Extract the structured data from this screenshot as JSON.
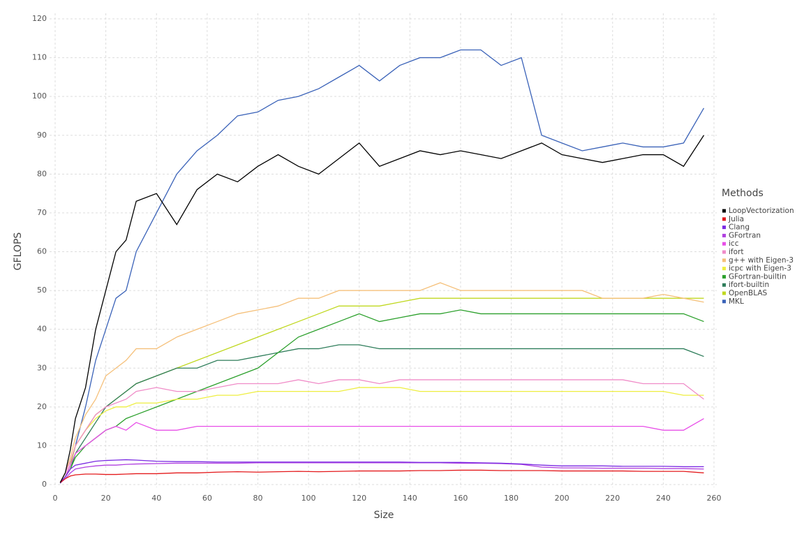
{
  "chart_data": {
    "type": "line",
    "x_label": "Size",
    "y_label": "GFLOPS",
    "legend_title": "Methods",
    "legend_position": "right",
    "grid": true,
    "xlim": [
      0,
      260
    ],
    "xticks": [
      0,
      20,
      40,
      60,
      80,
      100,
      120,
      140,
      160,
      180,
      200,
      220,
      240,
      260
    ],
    "ylim": [
      0,
      120
    ],
    "yticks": [
      0,
      10,
      20,
      30,
      40,
      50,
      60,
      70,
      80,
      90,
      100,
      110,
      120
    ],
    "x": [
      2,
      4,
      6,
      8,
      12,
      16,
      20,
      24,
      28,
      32,
      40,
      48,
      56,
      64,
      72,
      80,
      88,
      96,
      104,
      112,
      120,
      128,
      136,
      144,
      152,
      160,
      168,
      176,
      184,
      192,
      200,
      208,
      216,
      224,
      232,
      240,
      248,
      256
    ],
    "series": [
      {
        "name": "LoopVectorization",
        "color": "#000000",
        "values": [
          0.5,
          3,
          9,
          17,
          25,
          40,
          50,
          60,
          63,
          73,
          75,
          67,
          76,
          80,
          78,
          82,
          85,
          82,
          80,
          84,
          88,
          82,
          84,
          86,
          85,
          86,
          85,
          84,
          86,
          88,
          85,
          84,
          83,
          84,
          85,
          85,
          82,
          90
        ]
      },
      {
        "name": "Julia",
        "color": "#e41a1c",
        "values": [
          0.5,
          1.5,
          2.2,
          2.5,
          2.7,
          2.7,
          2.6,
          2.6,
          2.7,
          2.8,
          2.8,
          3,
          3,
          3.2,
          3.3,
          3.2,
          3.3,
          3.4,
          3.3,
          3.4,
          3.5,
          3.5,
          3.5,
          3.6,
          3.6,
          3.7,
          3.7,
          3.6,
          3.6,
          3.6,
          3.5,
          3.5,
          3.5,
          3.5,
          3.4,
          3.4,
          3.4,
          3
        ]
      },
      {
        "name": "Clang",
        "color": "#7b2be2",
        "values": [
          0.5,
          2,
          4,
          5,
          5.5,
          6,
          6.2,
          6.3,
          6.4,
          6.3,
          6,
          5.9,
          5.9,
          5.8,
          5.8,
          5.8,
          5.8,
          5.8,
          5.8,
          5.8,
          5.8,
          5.8,
          5.8,
          5.7,
          5.7,
          5.7,
          5.6,
          5.5,
          5.3,
          5,
          4.8,
          4.8,
          4.8,
          4.7,
          4.7,
          4.7,
          4.6,
          4.6
        ]
      },
      {
        "name": "GFortran",
        "color": "#b040e0",
        "values": [
          0.4,
          1.5,
          3,
          4,
          4.5,
          4.8,
          5,
          5,
          5.2,
          5.3,
          5.4,
          5.5,
          5.5,
          5.5,
          5.5,
          5.6,
          5.6,
          5.6,
          5.6,
          5.6,
          5.6,
          5.6,
          5.6,
          5.6,
          5.6,
          5.5,
          5.5,
          5.4,
          5.2,
          4.5,
          4.3,
          4.3,
          4.2,
          4.2,
          4.2,
          4.1,
          4.1,
          4
        ]
      },
      {
        "name": "icc",
        "color": "#e84ee8",
        "values": [
          0.5,
          2,
          5,
          8,
          10,
          12,
          14,
          15,
          14,
          16,
          14,
          14,
          15,
          15,
          15,
          15,
          15,
          15,
          15,
          15,
          15,
          15,
          15,
          15,
          15,
          15,
          15,
          15,
          15,
          15,
          15,
          15,
          15,
          15,
          15,
          14,
          14,
          17
        ]
      },
      {
        "name": "ifort",
        "color": "#f08cc8",
        "values": [
          0.5,
          3,
          6,
          10,
          14,
          18,
          20,
          21,
          22,
          24,
          25,
          24,
          24,
          25,
          26,
          26,
          26,
          27,
          26,
          27,
          27,
          26,
          27,
          27,
          27,
          27,
          27,
          27,
          27,
          27,
          27,
          27,
          27,
          27,
          26,
          26,
          26,
          22
        ]
      },
      {
        "name": "g++ with Eigen-3",
        "color": "#f5c07a",
        "values": [
          0.5,
          3,
          7,
          12,
          18,
          22,
          28,
          30,
          32,
          35,
          35,
          38,
          40,
          42,
          44,
          45,
          46,
          48,
          48,
          50,
          50,
          50,
          50,
          50,
          52,
          50,
          50,
          50,
          50,
          50,
          50,
          50,
          48,
          48,
          48,
          49,
          48,
          47
        ]
      },
      {
        "name": "icpc with Eigen-3",
        "color": "#eeee40",
        "values": [
          0.5,
          3,
          6,
          10,
          14,
          17,
          19,
          20,
          20,
          21,
          21,
          22,
          22,
          23,
          23,
          24,
          24,
          24,
          24,
          24,
          25,
          25,
          25,
          24,
          24,
          24,
          24,
          24,
          24,
          24,
          24,
          24,
          24,
          24,
          24,
          24,
          23,
          23
        ]
      },
      {
        "name": "GFortran-builtin",
        "color": "#2ca02c",
        "values": [
          0.5,
          2,
          4,
          7,
          10,
          12,
          14,
          15,
          17,
          18,
          20,
          22,
          24,
          26,
          28,
          30,
          34,
          38,
          40,
          42,
          44,
          42,
          43,
          44,
          44,
          45,
          44,
          44,
          44,
          44,
          44,
          44,
          44,
          44,
          44,
          44,
          44,
          42
        ]
      },
      {
        "name": "ifort-builtin",
        "color": "#2e7d5a",
        "values": [
          0.5,
          2,
          4,
          8,
          12,
          16,
          20,
          22,
          24,
          26,
          28,
          30,
          30,
          32,
          32,
          33,
          34,
          35,
          35,
          36,
          36,
          35,
          35,
          35,
          35,
          35,
          35,
          35,
          35,
          35,
          35,
          35,
          35,
          35,
          35,
          35,
          35,
          33
        ]
      },
      {
        "name": "OpenBLAS",
        "color": "#c0d820",
        "values": [
          0.5,
          2,
          5,
          10,
          14,
          18,
          20,
          22,
          24,
          26,
          28,
          30,
          32,
          34,
          36,
          38,
          40,
          42,
          44,
          46,
          46,
          46,
          47,
          48,
          48,
          48,
          48,
          48,
          48,
          48,
          48,
          48,
          48,
          48,
          48,
          48,
          48,
          48
        ]
      },
      {
        "name": "MKL",
        "color": "#3a62b8",
        "values": [
          0.3,
          2,
          5,
          10,
          20,
          32,
          40,
          48,
          50,
          60,
          70,
          80,
          86,
          90,
          95,
          96,
          99,
          100,
          102,
          105,
          108,
          104,
          108,
          110,
          110,
          112,
          112,
          108,
          110,
          90,
          88,
          86,
          87,
          88,
          87,
          87,
          88,
          97
        ]
      }
    ]
  }
}
